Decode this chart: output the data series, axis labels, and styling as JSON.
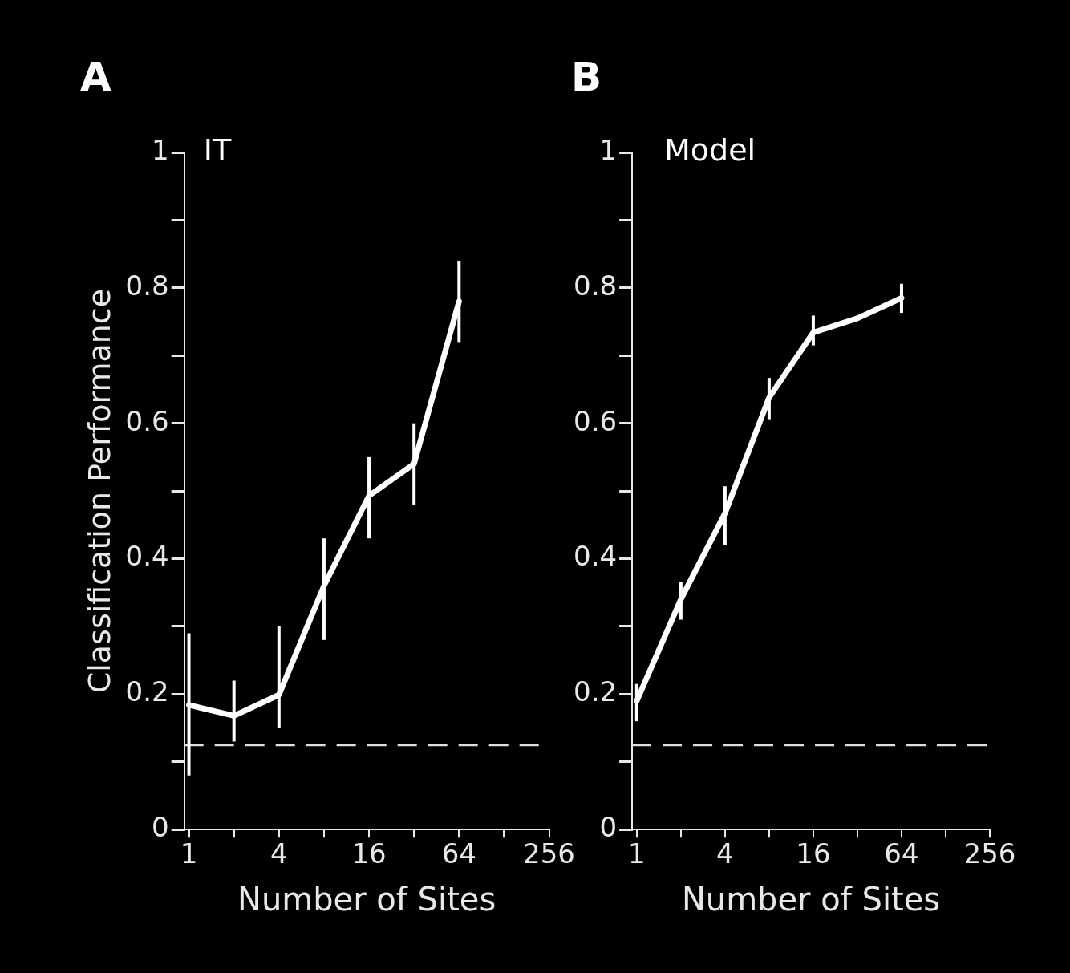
{
  "chart_data": [
    {
      "type": "line",
      "title": "A",
      "xlabel": "Number of Sites",
      "ylabel": "Classification Performance",
      "annotations": [
        "IT"
      ],
      "log": "x",
      "grid": false,
      "legend": false,
      "marker": "none",
      "line_style": "solid",
      "x": [
        1,
        2,
        4,
        8,
        16,
        32,
        64
      ],
      "xlim": [
        0.93,
        256
      ],
      "xticks": [
        1,
        {
          "value": 2,
          "label": null
        },
        4,
        {
          "value": 8,
          "label": null
        },
        16,
        {
          "value": 32,
          "label": null
        },
        64,
        {
          "value": 128,
          "label": null
        },
        256
      ],
      "ylim": [
        0,
        1
      ],
      "yticks": [
        0,
        {
          "value": 0.1,
          "label": null
        },
        0.2,
        {
          "value": 0.3,
          "label": null
        },
        0.4,
        {
          "value": 0.5,
          "label": null
        },
        0.6,
        {
          "value": 0.7,
          "label": null
        },
        0.8,
        {
          "value": 0.9,
          "label": null
        },
        1
      ],
      "series": [
        {
          "color": "#ffffff",
          "values": [
            0.184,
            0.168,
            0.199,
            0.36,
            0.493,
            0.54,
            0.78
          ],
          "errors": [
            [
              0.08,
              0.29
            ],
            [
              0.13,
              0.22
            ],
            [
              0.15,
              0.3
            ],
            [
              0.28,
              0.43
            ],
            [
              0.43,
              0.55
            ],
            [
              0.48,
              0.6
            ],
            [
              0.72,
              0.84
            ]
          ]
        }
      ],
      "ref_lines": [
        {
          "axis": "y",
          "value": 0.125,
          "color": "#e0e0e0",
          "line_style": "dashed"
        }
      ]
    },
    {
      "type": "line",
      "title": "B",
      "xlabel": "Number of Sites",
      "annotations": [
        "Model"
      ],
      "log": "x",
      "grid": false,
      "legend": false,
      "marker": "none",
      "line_style": "solid",
      "x": [
        1,
        2,
        4,
        8,
        16,
        32,
        64
      ],
      "xlim": [
        0.93,
        256
      ],
      "xticks": [
        1,
        {
          "value": 2,
          "label": null
        },
        4,
        {
          "value": 8,
          "label": null
        },
        16,
        {
          "value": 32,
          "label": null
        },
        64,
        {
          "value": 128,
          "label": null
        },
        256
      ],
      "ylim": [
        0,
        1
      ],
      "yticks": [
        0,
        {
          "value": 0.1,
          "label": null
        },
        0.2,
        {
          "value": 0.3,
          "label": null
        },
        0.4,
        {
          "value": 0.5,
          "label": null
        },
        0.6,
        {
          "value": 0.7,
          "label": null
        },
        0.8,
        {
          "value": 0.9,
          "label": null
        },
        1
      ],
      "series": [
        {
          "color": "#ffffff",
          "values": [
            0.19,
            0.34,
            0.467,
            0.638,
            0.734,
            0.755,
            0.785
          ],
          "errors": [
            [
              0.16,
              0.215
            ],
            [
              0.31,
              0.366
            ],
            [
              0.42,
              0.507
            ],
            [
              0.606,
              0.667
            ],
            [
              0.715,
              0.759
            ],
            null,
            [
              0.763,
              0.806
            ]
          ]
        }
      ],
      "ref_lines": [
        {
          "axis": "y",
          "value": 0.125,
          "color": "#e0e0e0",
          "line_style": "dashed"
        }
      ]
    }
  ]
}
